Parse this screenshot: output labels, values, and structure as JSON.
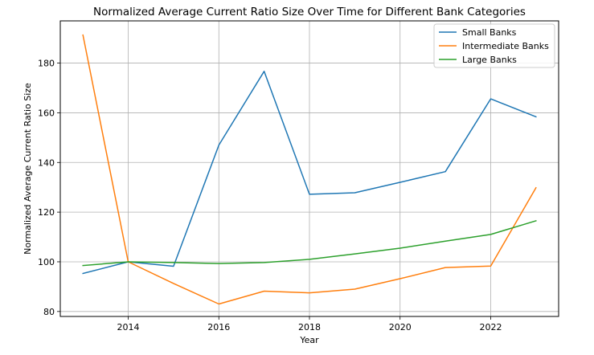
{
  "chart_data": {
    "type": "line",
    "title": "Normalized Average Current Ratio Size Over Time for Different Bank Categories",
    "xlabel": "Year",
    "ylabel": "Normalized Average Current Ratio Size",
    "x": [
      2013,
      2014,
      2015,
      2016,
      2017,
      2018,
      2019,
      2020,
      2021,
      2022,
      2023
    ],
    "xticks": [
      2014,
      2016,
      2018,
      2020,
      2022
    ],
    "yticks": [
      80,
      100,
      120,
      140,
      160,
      180
    ],
    "xlim": [
      2012.5,
      2023.5
    ],
    "ylim": [
      78,
      197
    ],
    "grid": true,
    "legend_position": "top-right",
    "series": [
      {
        "name": "Small Banks",
        "color": "#1f77b4",
        "values": [
          95.3,
          100,
          98.2,
          147,
          176.7,
          127.2,
          127.8,
          132,
          136.3,
          165.6,
          158.4
        ]
      },
      {
        "name": "Intermediate Banks",
        "color": "#ff7f0e",
        "values": [
          191.3,
          100,
          91.3,
          83,
          88.2,
          87.5,
          89,
          93.2,
          97.7,
          98.3,
          129.8
        ]
      },
      {
        "name": "Large Banks",
        "color": "#2ca02c",
        "values": [
          98.5,
          100,
          99.7,
          99.3,
          99.7,
          101,
          103.2,
          105.5,
          108.3,
          111,
          116.5
        ]
      }
    ]
  }
}
